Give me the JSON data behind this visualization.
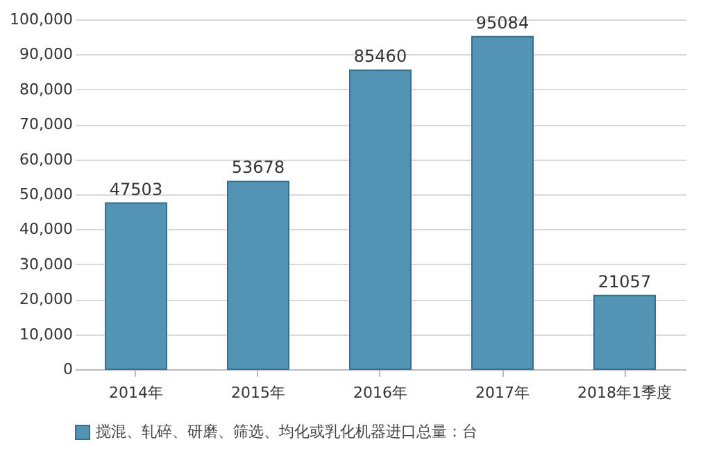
{
  "chart_data": {
    "type": "bar",
    "categories": [
      "2014年",
      "2015年",
      "2016年",
      "2017年",
      "2018年1季度"
    ],
    "series": [
      {
        "name": "搅混、轧碎、研磨、筛选、均化或乳化机器进口总量：台",
        "color": "#5393b3",
        "values": [
          47503,
          53678,
          85460,
          95084,
          21057
        ]
      }
    ],
    "ylim": [
      0,
      100000
    ],
    "yticks": [
      0,
      {
        "value": 10000,
        "label": "10,000"
      },
      {
        "value": 20000,
        "label": "20,000"
      },
      {
        "value": 30000,
        "label": "30,000"
      },
      {
        "value": 40000,
        "label": "40,000"
      },
      {
        "value": 50000,
        "label": "50,000"
      },
      {
        "value": 60000,
        "label": "60,000"
      },
      {
        "value": 70000,
        "label": "70,000"
      },
      {
        "value": 80000,
        "label": "80,000"
      },
      {
        "value": 90000,
        "label": "90,000"
      },
      {
        "value": 100000,
        "label": "100,000"
      }
    ],
    "grid": "y",
    "legend": "bottom",
    "data_labels": true
  }
}
